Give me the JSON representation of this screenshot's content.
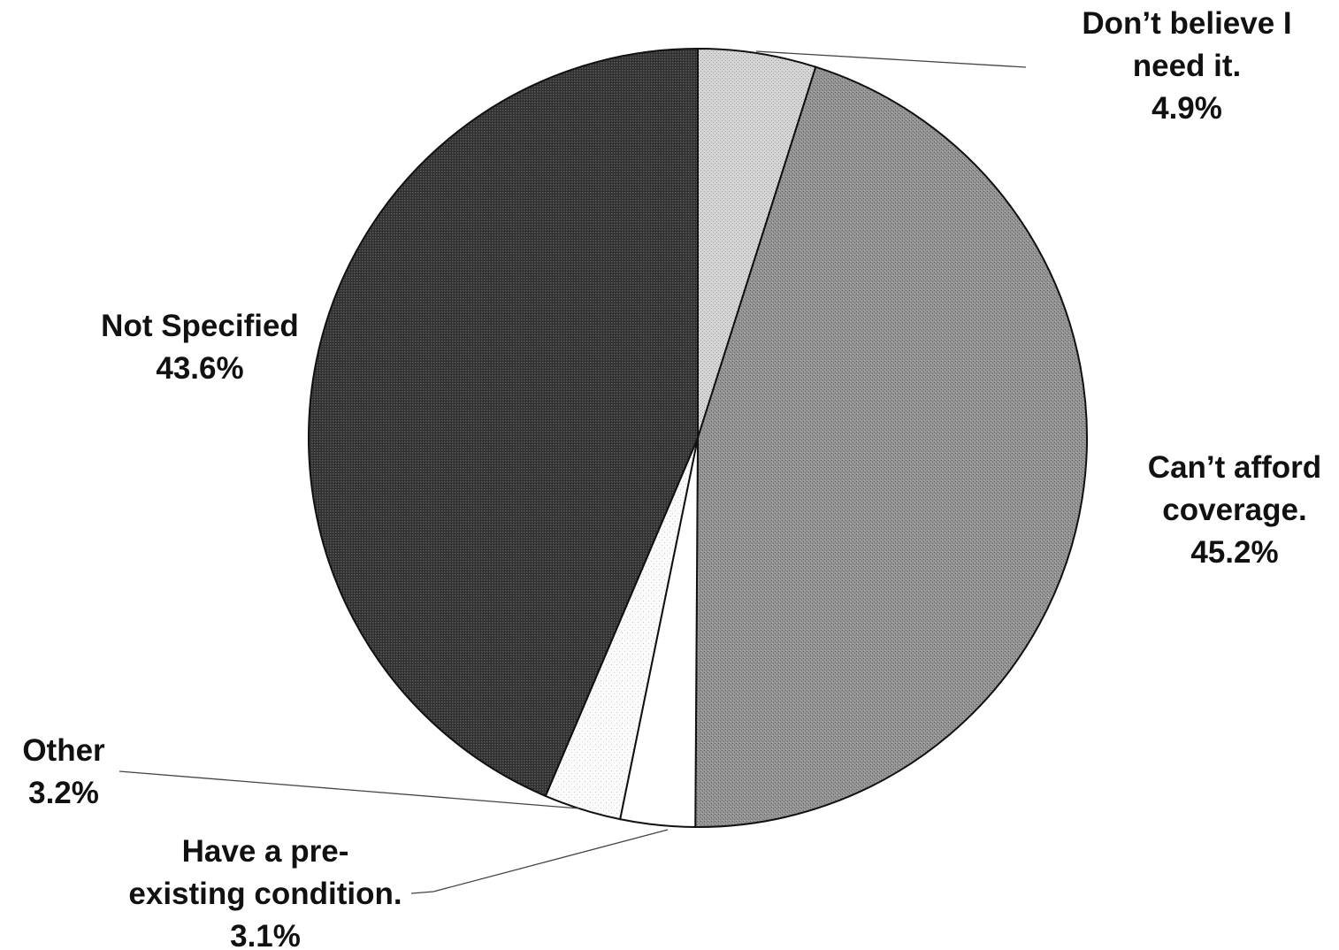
{
  "chart_data": {
    "type": "pie",
    "start_angle_deg": 0,
    "direction": "clockwise",
    "slices": [
      {
        "label_lines": [
          "Don’t believe I",
          "need it."
        ],
        "value_label": "4.9%",
        "value": 4.9,
        "fill": "#cfcfcf",
        "pattern": "fine-dots-light"
      },
      {
        "label_lines": [
          "Can’t afford",
          "coverage."
        ],
        "value_label": "45.2%",
        "value": 45.2,
        "fill": "#8e8e8e",
        "pattern": "fine-dots-medium"
      },
      {
        "label_lines": [
          "Have a pre-",
          "existing condition."
        ],
        "value_label": "3.1%",
        "value": 3.1,
        "fill": "#ffffff",
        "pattern": "none"
      },
      {
        "label_lines": [
          "Other"
        ],
        "value_label": "3.2%",
        "value": 3.2,
        "fill": "#fafafa",
        "pattern": "sparse-dots"
      },
      {
        "label_lines": [
          "Not Specified"
        ],
        "value_label": "43.6%",
        "value": 43.6,
        "fill": "#424242",
        "pattern": "crosshatch-dark"
      }
    ]
  }
}
